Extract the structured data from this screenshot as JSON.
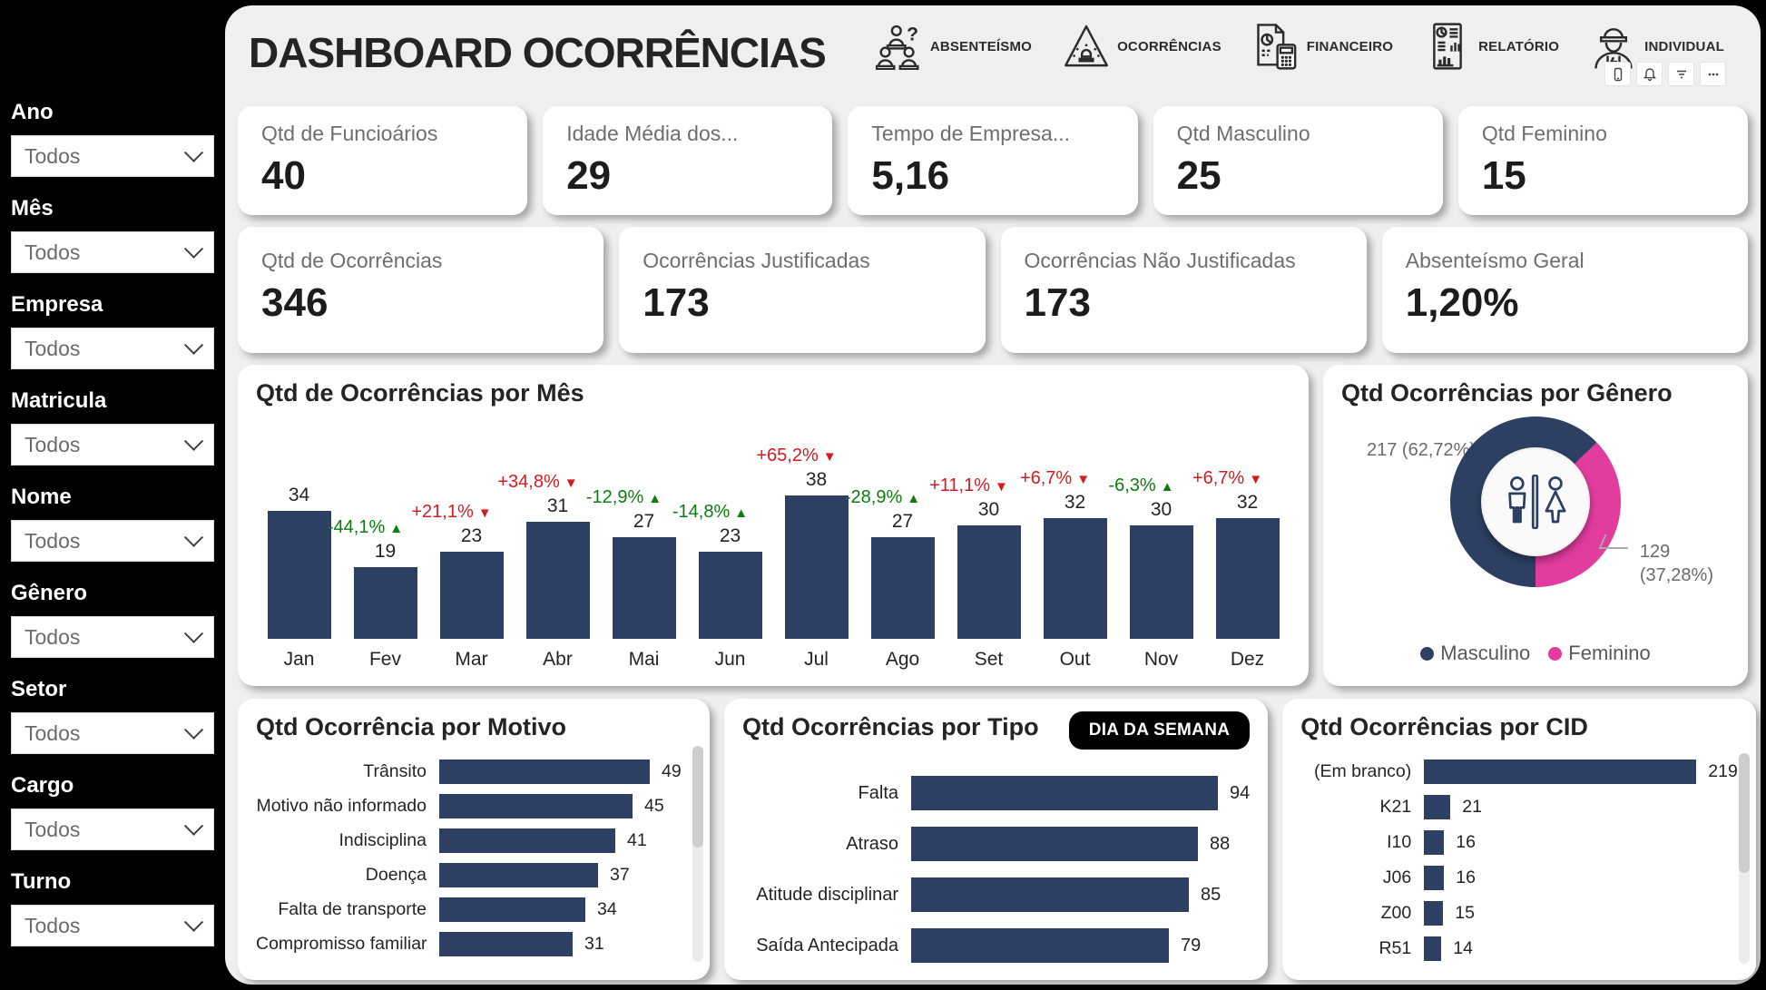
{
  "header": {
    "title": "DASHBOARD OCORRÊNCIAS",
    "nav": [
      {
        "icon": "absenteeism-icon",
        "label": "ABSENTEÍSMO"
      },
      {
        "icon": "occurrences-icon",
        "label": "OCORRÊNCIAS"
      },
      {
        "icon": "finance-icon",
        "label": "FINANCEIRO"
      },
      {
        "icon": "report-icon",
        "label": "RELATÓRIO"
      },
      {
        "icon": "individual-icon",
        "label": "INDIVIDUAL"
      }
    ],
    "window_actions": [
      "phone-icon",
      "notifications-icon",
      "filter-icon",
      "more-options-icon"
    ]
  },
  "sidebar": {
    "filters": [
      {
        "label": "Ano",
        "value": "Todos"
      },
      {
        "label": "Mês",
        "value": "Todos"
      },
      {
        "label": "Empresa",
        "value": "Todos"
      },
      {
        "label": "Matricula",
        "value": "Todos"
      },
      {
        "label": "Nome",
        "value": "Todos"
      },
      {
        "label": "Gênero",
        "value": "Todos"
      },
      {
        "label": "Setor",
        "value": "Todos"
      },
      {
        "label": "Cargo",
        "value": "Todos"
      },
      {
        "label": "Turno",
        "value": "Todos"
      }
    ]
  },
  "kpis_row1": [
    {
      "label": "Qtd de Funcioários",
      "value": "40"
    },
    {
      "label": "Idade Média dos...",
      "value": "29"
    },
    {
      "label": "Tempo de Empresa...",
      "value": "5,16"
    },
    {
      "label": "Qtd Masculino",
      "value": "25"
    },
    {
      "label": "Qtd Feminino",
      "value": "15"
    }
  ],
  "kpis_row2": [
    {
      "label": "Qtd de Ocorrências",
      "value": "346"
    },
    {
      "label": "Ocorrências Justificadas",
      "value": "173"
    },
    {
      "label": "Ocorrências Não Justificadas",
      "value": "173"
    },
    {
      "label": "Absenteísmo Geral",
      "value": "1,20%"
    }
  ],
  "colors": {
    "bar_navy": "#2d4063",
    "female_pink": "#e23c9f",
    "delta_good_green": "#0e7c0e",
    "delta_bad_red": "#d21c20",
    "canvas_bg": "#efefef",
    "sidebar_bg": "#000000"
  },
  "chart_data": [
    {
      "type": "bar",
      "title": "Qtd de Ocorrências por Mês",
      "categories": [
        "Jan",
        "Fev",
        "Mar",
        "Abr",
        "Mai",
        "Jun",
        "Jul",
        "Ago",
        "Set",
        "Out",
        "Nov",
        "Dez"
      ],
      "values": [
        34,
        19,
        23,
        31,
        27,
        23,
        38,
        27,
        30,
        32,
        30,
        32
      ],
      "deltas": [
        null,
        "-44,1%",
        "+21,1%",
        "+34,8%",
        "-12,9%",
        "-14,8%",
        "+65,2%",
        "-28,9%",
        "+11,1%",
        "+6,7%",
        "-6,3%",
        "+6,7%"
      ],
      "delta_directions": [
        null,
        "up",
        "down",
        "down",
        "up",
        "up",
        "down",
        "up",
        "down",
        "down",
        "up",
        "down"
      ],
      "ylim": [
        0,
        38
      ],
      "grid": false,
      "bar_color": "#2d4063"
    },
    {
      "type": "pie",
      "title": "Qtd Ocorrências por Gênero",
      "series": [
        {
          "name": "Masculino",
          "value": 217,
          "pct_num": 62.72,
          "pct_label": "62,72%",
          "color": "#2d4063"
        },
        {
          "name": "Feminino",
          "value": 129,
          "pct_num": 37.28,
          "pct_label": "37,28%",
          "color": "#e23c9f"
        }
      ],
      "callouts": {
        "masculino": "217 (62,72%)",
        "feminino_value": "129",
        "feminino_pct": "(37,28%)"
      },
      "legend_position": "bottom",
      "center_icon": "restroom-male-female-icon"
    },
    {
      "type": "bar",
      "title": "Qtd Ocorrência por Motivo",
      "orientation": "horizontal",
      "categories": [
        "Trânsito",
        "Motivo não informado",
        "Indisciplina",
        "Doença",
        "Falta de transporte",
        "Compromisso familiar"
      ],
      "values": [
        49,
        45,
        41,
        37,
        34,
        31
      ],
      "xlim": [
        0,
        49
      ],
      "bar_color": "#2d4063"
    },
    {
      "type": "bar",
      "title": "Qtd Ocorrências por Tipo",
      "orientation": "horizontal",
      "toggle_button": "DIA DA SEMANA",
      "categories": [
        "Falta",
        "Atraso",
        "Atitude disciplinar",
        "Saída Antecipada"
      ],
      "values": [
        94,
        88,
        85,
        79
      ],
      "xlim": [
        0,
        94
      ],
      "bar_color": "#2d4063"
    },
    {
      "type": "bar",
      "title": "Qtd Ocorrências por CID",
      "orientation": "horizontal",
      "categories": [
        "(Em branco)",
        "K21",
        "I10",
        "J06",
        "Z00",
        "R51"
      ],
      "values": [
        219,
        21,
        16,
        16,
        15,
        14
      ],
      "xlim": [
        0,
        219
      ],
      "bar_color": "#2d4063"
    }
  ]
}
